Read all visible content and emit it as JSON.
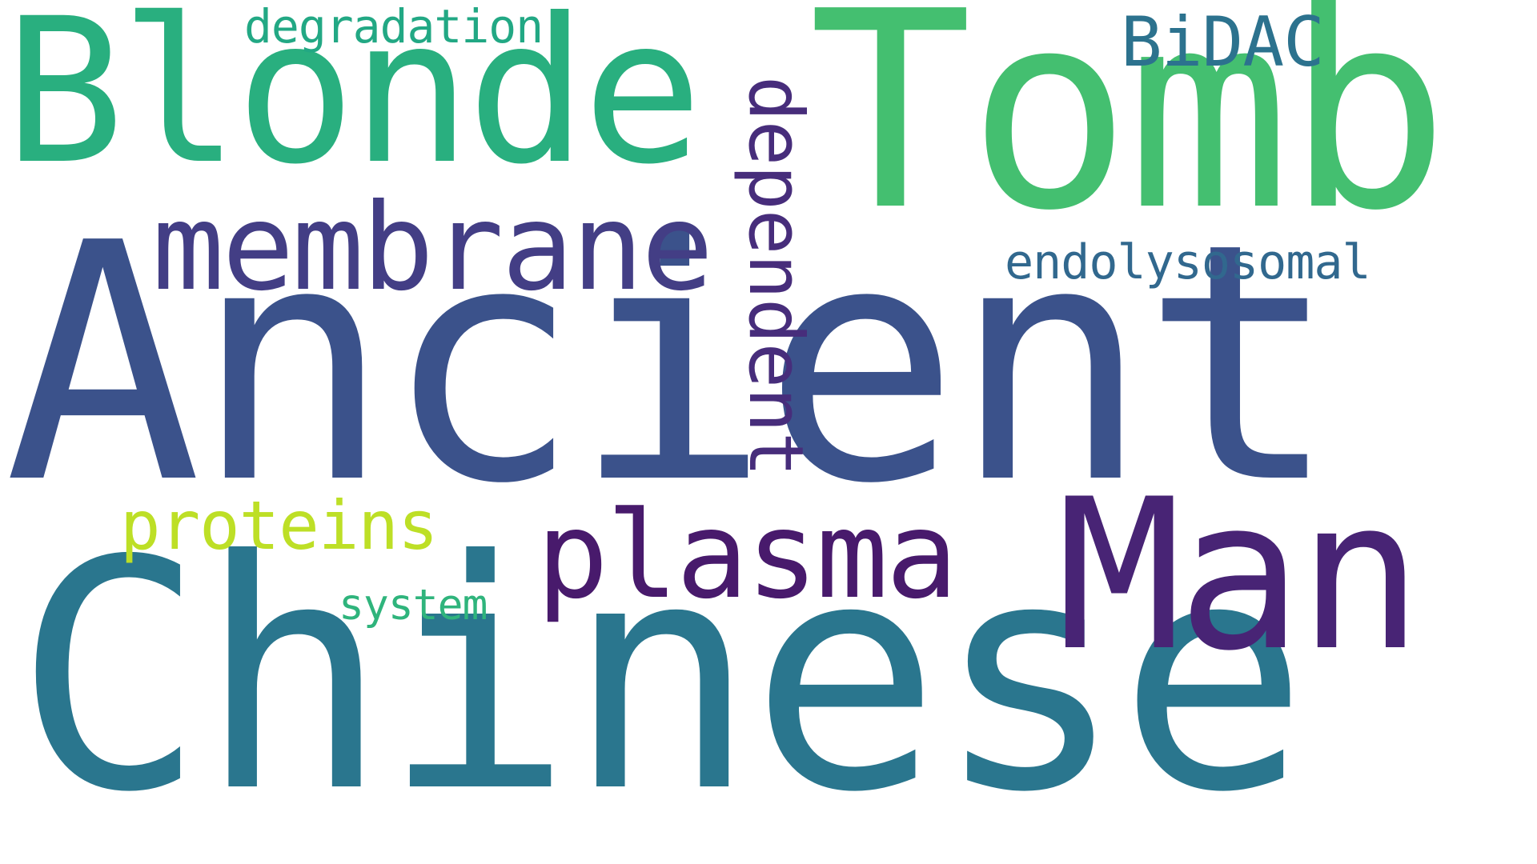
{
  "words": [
    {
      "id": "chinese",
      "text": "Chinese",
      "color": "#2A768E"
    },
    {
      "id": "ancient",
      "text": "Ancient",
      "color": "#3B528B"
    },
    {
      "id": "tomb",
      "text": "Tomb",
      "color": "#44BF70"
    },
    {
      "id": "blonde",
      "text": "Blonde",
      "color": "#29AF7F"
    },
    {
      "id": "man",
      "text": "Man",
      "color": "#482475"
    },
    {
      "id": "membrane",
      "text": "membrane",
      "color": "#433E85"
    },
    {
      "id": "plasma",
      "text": "plasma",
      "color": "#481A6C"
    },
    {
      "id": "dependent",
      "text": "dependent",
      "color": "#472D7B"
    },
    {
      "id": "proteins",
      "text": "proteins",
      "color": "#BDDF26"
    },
    {
      "id": "bidac",
      "text": "BiDAC",
      "color": "#2C728E"
    },
    {
      "id": "endolysosomal",
      "text": "endolysosomal",
      "color": "#31688E"
    },
    {
      "id": "degradation",
      "text": "degradation",
      "color": "#22A884"
    },
    {
      "id": "system",
      "text": "system",
      "color": "#2FB47C"
    }
  ]
}
